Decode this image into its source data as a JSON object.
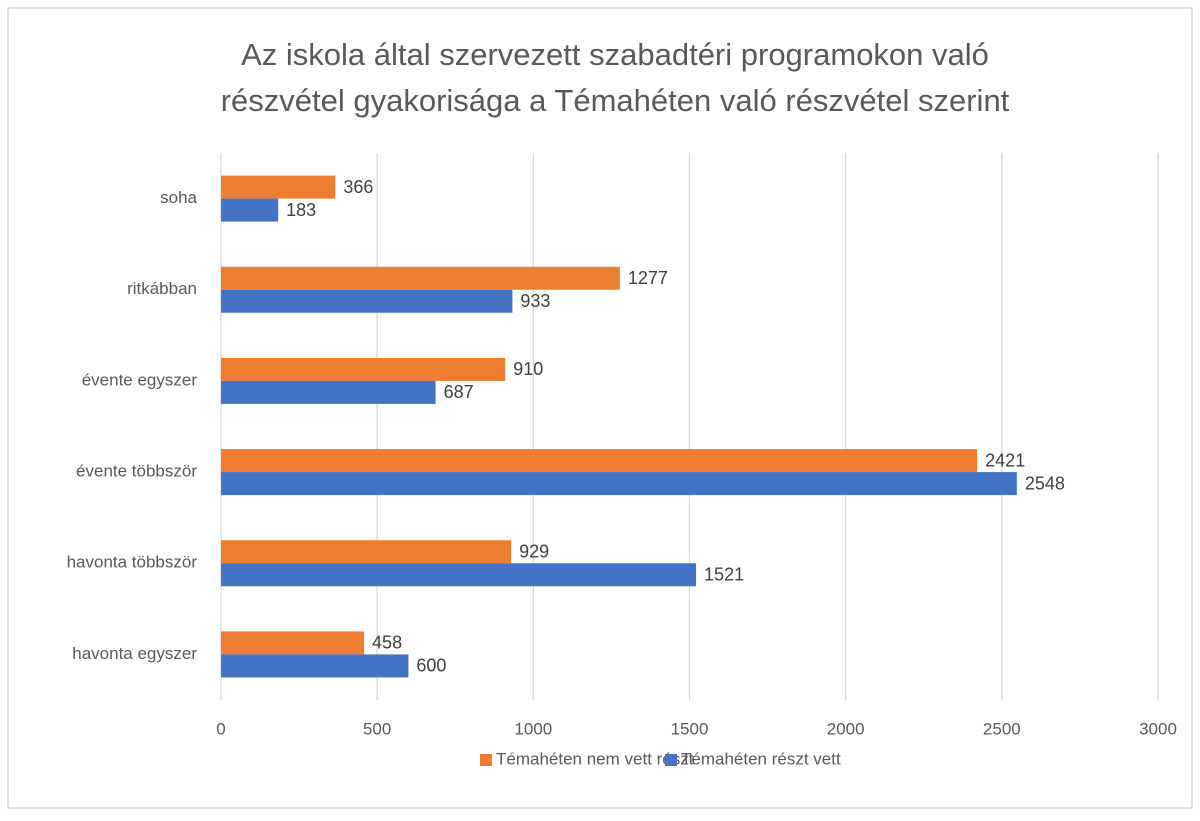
{
  "chart_data": {
    "type": "bar",
    "orientation": "horizontal",
    "title": [
      "Az iskola által szervezett szabadtéri programokon való",
      "részvétel gyakorisága a Témahéten való részvétel szerint"
    ],
    "categories": [
      "soha",
      "ritkábban",
      "évente egyszer",
      "évente többször",
      "havonta többször",
      "havonta egyszer"
    ],
    "series": [
      {
        "name": "Témahéten nem vett részt",
        "color": "#ed7d31",
        "values": [
          366,
          1277,
          910,
          2421,
          929,
          458
        ]
      },
      {
        "name": "Témahéten részt vett",
        "color": "#4472c4",
        "values": [
          183,
          933,
          687,
          2548,
          1521,
          600
        ]
      }
    ],
    "xlim": [
      0,
      3000
    ],
    "xticks": [
      0,
      500,
      1000,
      1500,
      2000,
      2500,
      3000
    ],
    "grid": true,
    "legend": "bottom"
  }
}
